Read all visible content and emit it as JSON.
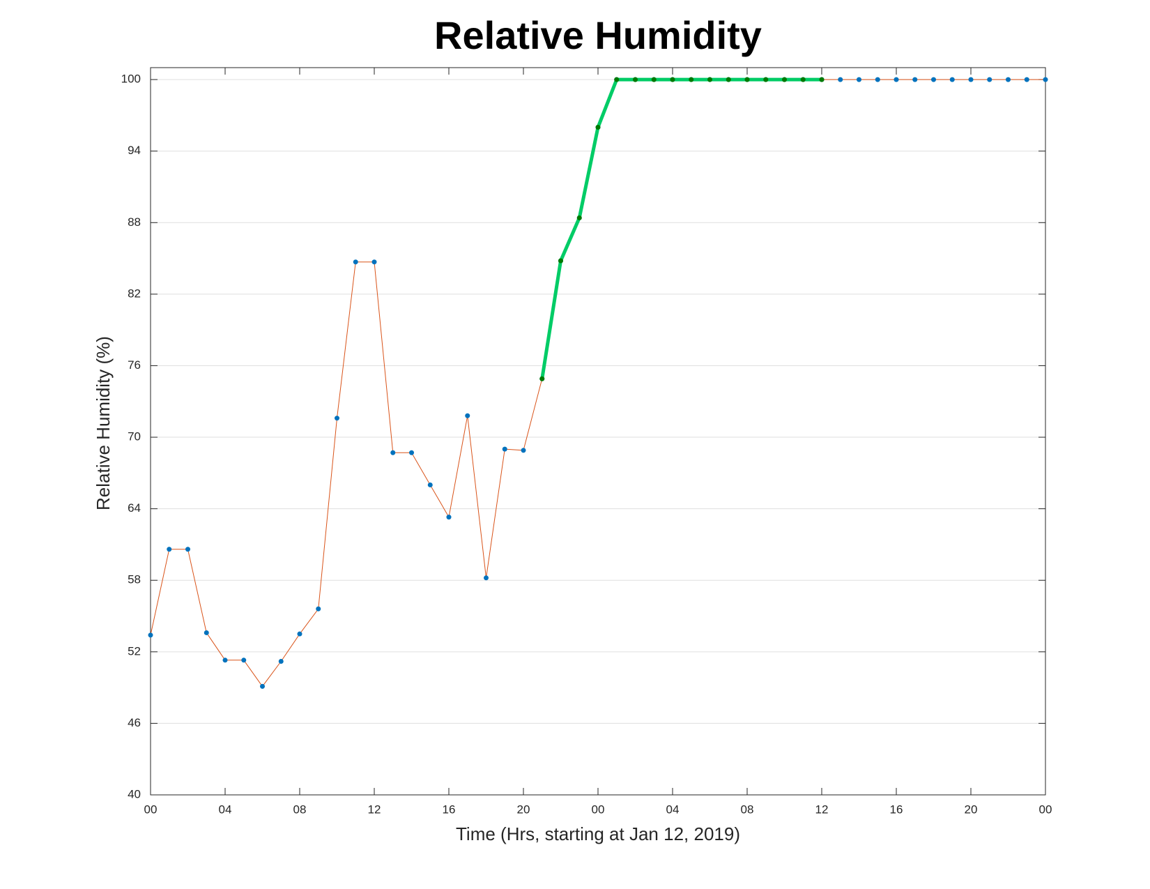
{
  "chart_data": {
    "type": "line",
    "title": "Relative Humidity",
    "x_label": "Time (Hrs, starting at Jan 12, 2019)",
    "y_label": "Relative Humidity (%)",
    "x": [
      0,
      1,
      2,
      3,
      4,
      5,
      6,
      7,
      8,
      9,
      10,
      11,
      12,
      13,
      14,
      15,
      16,
      17,
      18,
      19,
      20,
      21,
      22,
      23,
      24,
      25,
      26,
      27,
      28,
      29,
      30,
      31,
      32,
      33,
      34,
      35,
      36,
      37,
      38,
      39,
      40,
      41,
      42,
      43,
      44,
      45,
      46,
      47,
      48
    ],
    "series": [
      {
        "color": "#d95319",
        "marker_color": "#0072bd",
        "line_width": 1,
        "values": [
          53.4,
          60.6,
          60.6,
          53.6,
          51.3,
          51.3,
          49.1,
          51.2,
          53.5,
          55.6,
          71.6,
          84.7,
          84.7,
          68.7,
          68.7,
          66.0,
          63.3,
          71.8,
          58.2,
          69.0,
          68.9,
          74.9,
          84.8,
          88.4,
          96.0,
          100,
          100,
          100,
          100,
          100,
          100,
          100,
          100,
          100,
          100,
          100,
          100,
          100,
          100,
          100,
          100,
          100,
          100,
          100,
          100,
          100,
          100,
          100,
          100
        ]
      },
      {
        "color": "#00cc66",
        "marker_color": "#007a00",
        "line_width": 5,
        "values": [
          null,
          null,
          null,
          null,
          null,
          null,
          null,
          null,
          null,
          null,
          null,
          null,
          null,
          null,
          null,
          null,
          null,
          null,
          null,
          null,
          null,
          74.9,
          84.8,
          88.4,
          96.0,
          100,
          100,
          100,
          100,
          100,
          100,
          100,
          100,
          100,
          100,
          100,
          100,
          null,
          null,
          null,
          null,
          null,
          null,
          null,
          null,
          null,
          null,
          null,
          null
        ]
      }
    ],
    "xlim": [
      0,
      48
    ],
    "xticks": [
      {
        "value": 0,
        "label": "00"
      },
      {
        "value": 4,
        "label": "04"
      },
      {
        "value": 8,
        "label": "08"
      },
      {
        "value": 12,
        "label": "12"
      },
      {
        "value": 16,
        "label": "16"
      },
      {
        "value": 20,
        "label": "20"
      },
      {
        "value": 24,
        "label": "00"
      },
      {
        "value": 28,
        "label": "04"
      },
      {
        "value": 32,
        "label": "08"
      },
      {
        "value": 36,
        "label": "12"
      },
      {
        "value": 40,
        "label": "16"
      },
      {
        "value": 44,
        "label": "20"
      },
      {
        "value": 48,
        "label": "00"
      }
    ],
    "ylim": [
      40,
      101
    ],
    "yticks": [
      40,
      46,
      52,
      58,
      64,
      70,
      76,
      82,
      88,
      94,
      100
    ],
    "grid": "y"
  }
}
